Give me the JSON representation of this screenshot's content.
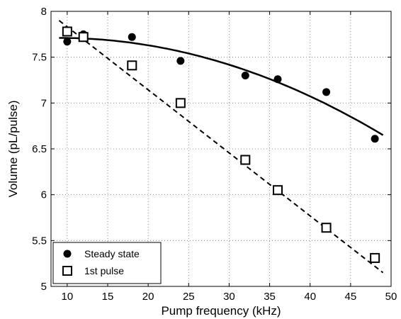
{
  "chart_data": {
    "type": "scatter",
    "title": "",
    "xlabel": "Pump frequency (kHz)",
    "ylabel": "Volume (pL/pulse)",
    "xlim": [
      8,
      50
    ],
    "ylim": [
      5,
      8
    ],
    "xticks": [
      10,
      15,
      20,
      25,
      30,
      35,
      40,
      45,
      50
    ],
    "yticks": [
      5,
      5.5,
      6,
      6.5,
      7,
      7.5,
      8
    ],
    "xtick_labels": [
      "10",
      "15",
      "20",
      "25",
      "30",
      "35",
      "40",
      "45",
      "50"
    ],
    "ytick_labels": [
      "5",
      "5.5",
      "6",
      "6.5",
      "7",
      "7.5",
      "8"
    ],
    "grid": true,
    "grid_style": "dotted",
    "legend_position": "bottom-left",
    "series": [
      {
        "name": "Steady state",
        "marker": "filled-circle",
        "x": [
          10,
          12,
          18,
          24,
          32,
          36,
          42,
          48
        ],
        "y": [
          7.67,
          7.75,
          7.72,
          7.46,
          7.3,
          7.26,
          7.12,
          6.61
        ],
        "fit": {
          "style": "solid",
          "x": [
            9,
            49
          ],
          "y": [
            7.71,
            6.65
          ]
        }
      },
      {
        "name": "1st pulse",
        "marker": "open-square",
        "x": [
          10,
          12,
          18,
          24,
          32,
          36,
          42,
          48
        ],
        "y": [
          7.78,
          7.72,
          7.41,
          7.0,
          6.38,
          6.05,
          5.64,
          5.31
        ],
        "fit": {
          "style": "dashed",
          "x": [
            9,
            49
          ],
          "y": [
            7.9,
            5.15
          ]
        }
      }
    ]
  }
}
